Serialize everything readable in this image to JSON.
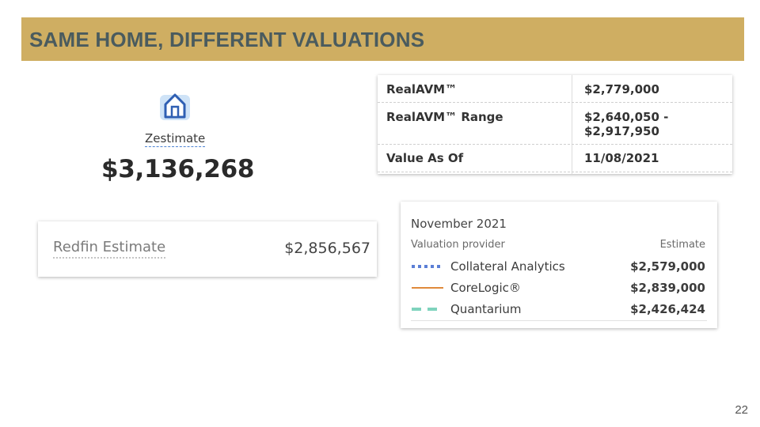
{
  "slide": {
    "title": "SAME HOME, DIFFERENT VALUATIONS",
    "page_number": "22",
    "accent_color": "#cfae62"
  },
  "zestimate": {
    "icon": "house-icon",
    "label": "Zestimate",
    "value": "$3,136,268"
  },
  "redfin": {
    "label": "Redfin Estimate",
    "value": "$2,856,567"
  },
  "realavm": {
    "rows": [
      {
        "key": "RealAVM™",
        "value": "$2,779,000"
      },
      {
        "key": "RealAVM™ Range",
        "value": "$2,640,050 - $2,917,950"
      },
      {
        "key": "Value As Of",
        "value": "11/08/2021"
      }
    ]
  },
  "providers": {
    "title": "November 2021",
    "col_provider": "Valuation provider",
    "col_estimate": "Estimate",
    "rows": [
      {
        "name": "Collateral Analytics",
        "estimate": "$2,579,000",
        "line_style": "dotted",
        "color": "#5b7fd6"
      },
      {
        "name": "CoreLogic®",
        "estimate": "$2,839,000",
        "line_style": "solid",
        "color": "#e08a3c"
      },
      {
        "name": "Quantarium",
        "estimate": "$2,426,424",
        "line_style": "dashed",
        "color": "#7fd3bd"
      }
    ]
  }
}
